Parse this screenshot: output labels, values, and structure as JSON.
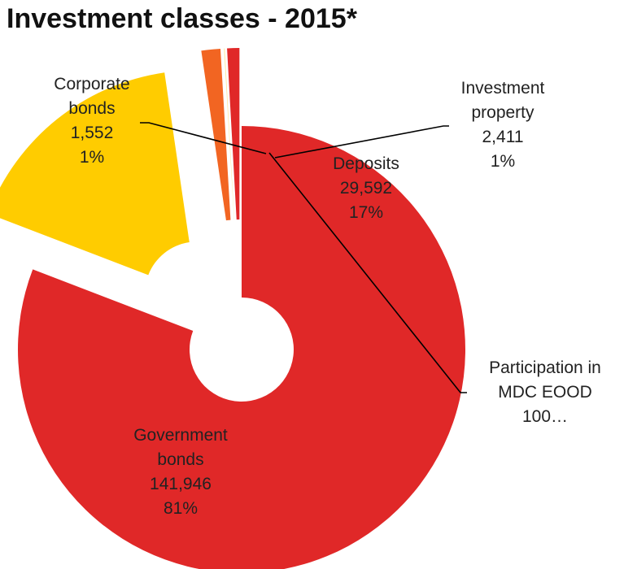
{
  "chart_data": {
    "type": "pie",
    "title": "Investment classes - 2015*",
    "categories": [
      "Government bonds",
      "Deposits",
      "Investment property",
      "Participation in MDC EOOD",
      "Corporate bonds"
    ],
    "values": [
      141946,
      29592,
      2411,
      100,
      1552
    ],
    "series": [
      {
        "values": [
          141946,
          29592,
          2411,
          100,
          1552
        ],
        "colors": [
          "#e02828",
          "#ffcc00",
          "#f26522",
          "#ffe699",
          "#e02828"
        ]
      }
    ],
    "data_labels": [
      {
        "name_lines": [
          "Government",
          "bonds"
        ],
        "value": "141,946",
        "percent": "81%"
      },
      {
        "name_lines": [
          "Deposits"
        ],
        "value": "29,592",
        "percent": "17%"
      },
      {
        "name_lines": [
          "Investment",
          "property"
        ],
        "value": "2,411",
        "percent": "1%"
      },
      {
        "name_lines": [
          "Participation in",
          "MDC EOOD"
        ],
        "value": "100…",
        "percent": ""
      },
      {
        "name_lines": [
          "Corporate",
          "bonds"
        ],
        "value": "1,552",
        "percent": "1%"
      }
    ],
    "legend": "none",
    "grid": false
  }
}
